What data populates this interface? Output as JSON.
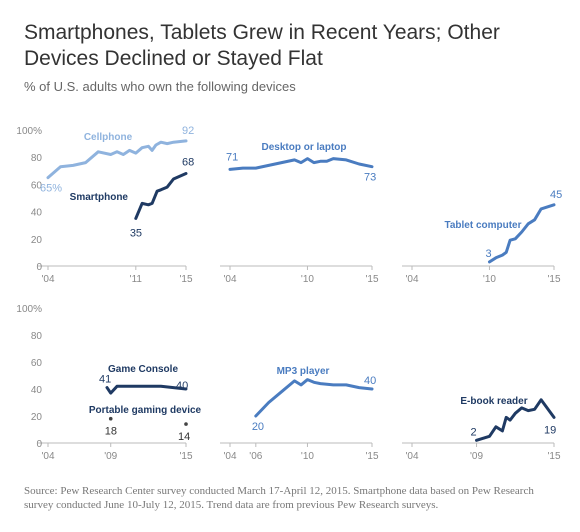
{
  "title": "Smartphones, Tablets Grew in Recent Years; Other Devices Declined or Stayed Flat",
  "subtitle": "% of U.S. adults who own the following devices",
  "source": "Source: Pew Research Center survey conducted March 17-April 12, 2015. Smartphone data based on Pew Research survey conducted June 10-July 12, 2015. Trend data are from previous Pew Research surveys.",
  "y_tick_labels": [
    "0",
    "20",
    "40",
    "60",
    "80",
    "100%"
  ],
  "colors": {
    "light": "#8fb3de",
    "mid": "#4a7cc0",
    "dark": "#1f3a63",
    "axis": "#bbbbbb",
    "tick": "#888888"
  },
  "chart_data": [
    {
      "type": "line",
      "xlim": [
        2004,
        2015
      ],
      "ylim": [
        0,
        100
      ],
      "x_ticks": [
        {
          "x": 2004,
          "label": "'04"
        },
        {
          "x": 2011,
          "label": "'11"
        },
        {
          "x": 2015,
          "label": "'15"
        }
      ],
      "show_y_axis": true,
      "series": [
        {
          "name": "Cellphone",
          "color": "light",
          "start_label": "65%",
          "end_label": "92",
          "x": [
            2004,
            2005,
            2006,
            2007,
            2008,
            2009,
            2009.5,
            2010,
            2010.5,
            2011,
            2011.5,
            2012,
            2012.3,
            2012.6,
            2013,
            2013.5,
            2014,
            2015
          ],
          "y": [
            65,
            73,
            74,
            76,
            84,
            82,
            84,
            82,
            85,
            83,
            87,
            88,
            85,
            89,
            91,
            90,
            91,
            92
          ]
        },
        {
          "name": "Smartphone",
          "color": "dark",
          "start_label": "35",
          "end_label": "68",
          "x": [
            2011,
            2011.5,
            2012,
            2012.3,
            2012.7,
            2013,
            2013.5,
            2014,
            2015
          ],
          "y": [
            35,
            46,
            45,
            46,
            55,
            56,
            58,
            64,
            68
          ]
        }
      ]
    },
    {
      "type": "line",
      "xlim": [
        2004,
        2015
      ],
      "ylim": [
        0,
        100
      ],
      "x_ticks": [
        {
          "x": 2004,
          "label": "'04"
        },
        {
          "x": 2010,
          "label": "'10"
        },
        {
          "x": 2015,
          "label": "'15"
        }
      ],
      "show_y_axis": false,
      "series": [
        {
          "name": "Desktop or laptop",
          "color": "mid",
          "start_label": "71",
          "end_label": "73",
          "x": [
            2004,
            2005,
            2006,
            2007,
            2008,
            2009,
            2009.5,
            2010,
            2010.5,
            2011,
            2011.5,
            2012,
            2013,
            2014,
            2015
          ],
          "y": [
            71,
            72,
            72,
            74,
            76,
            78,
            76,
            79,
            76,
            77,
            77,
            79,
            78,
            75,
            73
          ]
        }
      ]
    },
    {
      "type": "line",
      "xlim": [
        2004,
        2015
      ],
      "ylim": [
        0,
        100
      ],
      "x_ticks": [
        {
          "x": 2004,
          "label": "'04"
        },
        {
          "x": 2010,
          "label": "'10"
        },
        {
          "x": 2015,
          "label": "'15"
        }
      ],
      "show_y_axis": false,
      "series": [
        {
          "name": "Tablet computer",
          "color": "mid",
          "start_label": "3",
          "end_label": "45",
          "x": [
            2010,
            2010.5,
            2011,
            2011.3,
            2011.6,
            2012,
            2012.5,
            2013,
            2013.5,
            2014,
            2015
          ],
          "y": [
            3,
            6,
            8,
            10,
            19,
            20,
            25,
            31,
            34,
            42,
            45
          ]
        }
      ]
    },
    {
      "type": "line",
      "xlim": [
        2004,
        2015
      ],
      "ylim": [
        0,
        100
      ],
      "x_ticks": [
        {
          "x": 2004,
          "label": "'04"
        },
        {
          "x": 2009,
          "label": "'09"
        },
        {
          "x": 2015,
          "label": "'15"
        }
      ],
      "show_y_axis": true,
      "series": [
        {
          "name": "Game Console",
          "color": "dark",
          "start_label": "41",
          "end_label": "40",
          "x": [
            2008.7,
            2009,
            2009.5,
            2010,
            2011,
            2012,
            2013,
            2014,
            2015
          ],
          "y": [
            41,
            37,
            42,
            42,
            42,
            42,
            42,
            41,
            40
          ]
        },
        {
          "name": "Portable gaming device",
          "color": "dark",
          "points_only": true,
          "point_labels": [
            "18",
            "14"
          ],
          "x": [
            2009,
            2015
          ],
          "y": [
            18,
            14
          ]
        }
      ]
    },
    {
      "type": "line",
      "xlim": [
        2004,
        2015
      ],
      "ylim": [
        0,
        100
      ],
      "x_ticks": [
        {
          "x": 2004,
          "label": "'04"
        },
        {
          "x": 2006,
          "label": "'06"
        },
        {
          "x": 2010,
          "label": "'10"
        },
        {
          "x": 2015,
          "label": "'15"
        }
      ],
      "show_y_axis": false,
      "series": [
        {
          "name": "MP3 player",
          "color": "mid",
          "start_label": "20",
          "end_label": "40",
          "x": [
            2006,
            2007,
            2008,
            2009,
            2009.5,
            2010,
            2010.5,
            2011,
            2012,
            2013,
            2014,
            2015
          ],
          "y": [
            20,
            30,
            38,
            46,
            43,
            47,
            45,
            44,
            43,
            43,
            41,
            40
          ]
        }
      ]
    },
    {
      "type": "line",
      "xlim": [
        2004,
        2015
      ],
      "ylim": [
        0,
        100
      ],
      "x_ticks": [
        {
          "x": 2004,
          "label": "'04"
        },
        {
          "x": 2009,
          "label": "'09"
        },
        {
          "x": 2015,
          "label": "'15"
        }
      ],
      "show_y_axis": false,
      "series": [
        {
          "name": "E-book reader",
          "color": "dark",
          "start_label": "2",
          "end_label": "19",
          "x": [
            2009,
            2010,
            2010.5,
            2011,
            2011.3,
            2011.6,
            2012,
            2012.5,
            2013,
            2013.5,
            2014,
            2015
          ],
          "y": [
            2,
            5,
            12,
            9,
            19,
            17,
            22,
            26,
            24,
            25,
            32,
            19
          ]
        }
      ]
    }
  ]
}
